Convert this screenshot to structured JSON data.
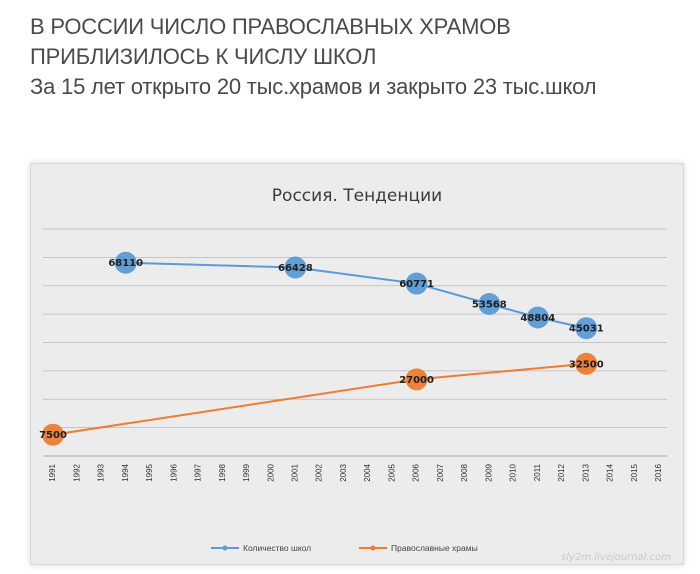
{
  "headline": {
    "line1": "В РОССИИ ЧИСЛО ПРАВОСЛАВНЫХ ХРАМОВ",
    "line2": "ПРИБЛИЗИЛОСЬ К ЧИСЛУ ШКОЛ",
    "subtitle": "За 15 лет открыто 20 тыс.храмов и закрыто 23 тыс.школ"
  },
  "colors": {
    "schools": "#5b9bd5",
    "schools_marker": "#4f8fd0",
    "churches": "#ed7d31",
    "grid": "#b8b8b8",
    "text": "#333333"
  },
  "chart_data": {
    "type": "line",
    "title": "Россия. Тенденции",
    "categories": [
      "1991",
      "1992",
      "1993",
      "1994",
      "1995",
      "1996",
      "1997",
      "1998",
      "1999",
      "2000",
      "2001",
      "2002",
      "2003",
      "2004",
      "2005",
      "2006",
      "2007",
      "2008",
      "2009",
      "2010",
      "2011",
      "2012",
      "2013",
      "2014",
      "2015",
      "2016"
    ],
    "series": [
      {
        "name": "Количество школ",
        "color": "#5b9bd5",
        "points": [
          {
            "x": "1994",
            "y": 68110,
            "label": "68110"
          },
          {
            "x": "2001",
            "y": 66428,
            "label": "66428"
          },
          {
            "x": "2006",
            "y": 60771,
            "label": "60771"
          },
          {
            "x": "2009",
            "y": 53568,
            "label": "53568"
          },
          {
            "x": "2011",
            "y": 48804,
            "label": "48804"
          },
          {
            "x": "2013",
            "y": 45031,
            "label": "45031"
          }
        ]
      },
      {
        "name": "Православные храмы",
        "color": "#ed7d31",
        "points": [
          {
            "x": "1991",
            "y": 7500,
            "label": "7500"
          },
          {
            "x": "2006",
            "y": 27000,
            "label": "27000"
          },
          {
            "x": "2013",
            "y": 32500,
            "label": "32500"
          }
        ]
      }
    ],
    "ylim": [
      0,
      80000
    ],
    "grid": true,
    "legend": "bottom",
    "watermark": "sly2m.livejournal.com"
  }
}
